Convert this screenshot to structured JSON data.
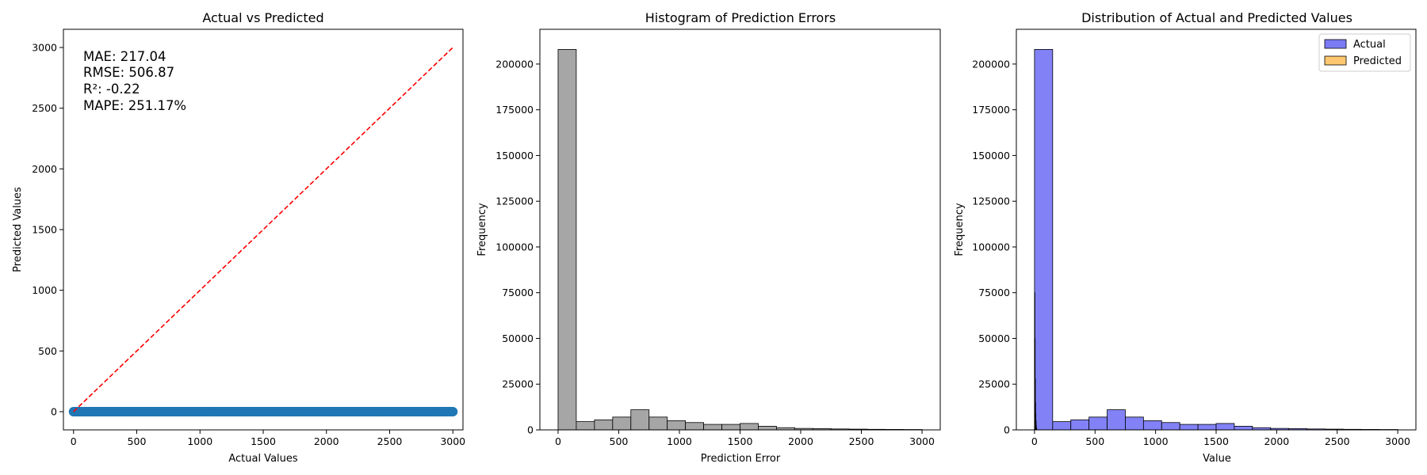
{
  "chart_data": [
    {
      "type": "scatter",
      "title": "Actual vs Predicted",
      "xlabel": "Actual Values",
      "ylabel": "Predicted Values",
      "xlim": [
        -80,
        3080
      ],
      "ylim": [
        -150,
        3150
      ],
      "xticks": [
        0,
        500,
        1000,
        1500,
        2000,
        2500,
        3000
      ],
      "yticks": [
        0,
        500,
        1000,
        1500,
        2000,
        2500,
        3000
      ],
      "scatter": {
        "x_start": 0,
        "x_end": 3000,
        "y": 0,
        "color": "#1f77b4"
      },
      "reference_line": {
        "from": [
          0,
          0
        ],
        "to": [
          3000,
          3000
        ],
        "color": "#ff0000",
        "style": "dashed"
      },
      "annotations": [
        "MAE: 217.04",
        "RMSE: 506.87",
        "R²: -0.22",
        "MAPE: 251.17%"
      ]
    },
    {
      "type": "bar",
      "title": "Histogram of Prediction Errors",
      "xlabel": "Prediction Error",
      "ylabel": "Frequency",
      "xlim": [
        -150,
        3150
      ],
      "ylim": [
        0,
        219000
      ],
      "xticks": [
        0,
        500,
        1000,
        1500,
        2000,
        2500,
        3000
      ],
      "yticks": [
        0,
        25000,
        50000,
        75000,
        100000,
        125000,
        150000,
        175000,
        200000
      ],
      "bin_edges": [
        0,
        150,
        300,
        450,
        600,
        750,
        900,
        1050,
        1200,
        1350,
        1500,
        1650,
        1800,
        1950,
        2100,
        2250,
        2400,
        2550,
        2700,
        2850,
        3000
      ],
      "values": [
        208000,
        4500,
        5500,
        7000,
        11000,
        7000,
        5000,
        4000,
        3000,
        3000,
        3500,
        2000,
        1200,
        800,
        700,
        500,
        400,
        300,
        250,
        200
      ],
      "color": "#a6a6a6"
    },
    {
      "type": "bar",
      "title": "Distribution of Actual and Predicted Values",
      "xlabel": "Value",
      "ylabel": "Frequency",
      "xlim": [
        -150,
        3150
      ],
      "ylim": [
        0,
        219000
      ],
      "xticks": [
        0,
        500,
        1000,
        1500,
        2000,
        2500,
        3000
      ],
      "yticks": [
        0,
        25000,
        50000,
        75000,
        100000,
        125000,
        150000,
        175000,
        200000
      ],
      "legend_position": "top-right",
      "series": [
        {
          "name": "Actual",
          "color": "#7b7bf5",
          "bin_edges": [
            0,
            150,
            300,
            450,
            600,
            750,
            900,
            1050,
            1200,
            1350,
            1500,
            1650,
            1800,
            1950,
            2100,
            2250,
            2400,
            2550,
            2700,
            2850,
            3000
          ],
          "values": [
            208000,
            4500,
            5500,
            7000,
            11000,
            7000,
            5000,
            4000,
            3000,
            3000,
            3500,
            2000,
            1200,
            800,
            700,
            500,
            400,
            300,
            250,
            200
          ]
        },
        {
          "name": "Predicted",
          "color": "#ffc870",
          "bin_edges": [
            0,
            2,
            4,
            6,
            8,
            10,
            12,
            14,
            16,
            18,
            20
          ],
          "values": [
            30000,
            75000,
            50000,
            28000,
            15000,
            9000,
            5000,
            2500,
            1000,
            400
          ]
        }
      ]
    }
  ]
}
